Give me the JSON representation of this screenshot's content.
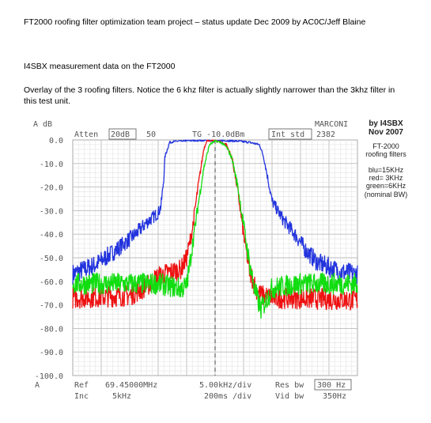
{
  "document": {
    "heading": "FT2000 roofing filter optimization team project – status update Dec 2009 by AC0C/Jeff Blaine",
    "subheading": "I4SBX measurement data on the FT2000",
    "paragraph_line1": "Overlay of the 3 roofing filters.  Notice the 6 khz filter is actually slightly narrower than the 3khz filter in",
    "paragraph_line2": "this test unit."
  },
  "chart_data": {
    "type": "line",
    "ylabel": "A dB",
    "ylim": [
      -100,
      0
    ],
    "y_ticks": [
      "0.0",
      "-10.0",
      "-20.0",
      "-30.0",
      "-40.0",
      "-50.0",
      "-60.0",
      "-70.0",
      "-80.0",
      "-90.0",
      "-100.0"
    ],
    "xlim": [
      -25,
      25
    ],
    "bottom_left_label": "A",
    "top_annotations": {
      "atten_label": "Atten",
      "atten_value": "20dB",
      "atten_extra": "50",
      "tg_label": "TG -10.0dBm",
      "int_std_label": "Int std",
      "int_std_value": "2382",
      "brand": "MARCONI"
    },
    "bottom_annotations": {
      "ref_label": "Ref",
      "ref_value": "69.45000MHz",
      "inc_label": "Inc",
      "inc_value": "5kHz",
      "div_freq": "5.00kHz/div",
      "div_time": "200ms /div",
      "res_bw_label": "Res bw",
      "res_bw_value": "300 Hz",
      "vid_bw_label": "Vid bw",
      "vid_bw_value": "350Hz"
    },
    "side_notes": {
      "author": "by I4SBX",
      "date": "Nov 2007",
      "model": "FT-2000",
      "subject": "roofing filters",
      "legend_blue": "blu=15KHz",
      "legend_red": "red= 3KHz",
      "legend_green": "green=6KHz",
      "nominal": "(nominal BW)"
    },
    "series": [
      {
        "color": "#2233dd",
        "x": [
          -25,
          -21,
          -17,
          -14,
          -12,
          -10,
          -9.5,
          -9,
          -8.8,
          -8,
          -6,
          -4,
          -2,
          0,
          2,
          4,
          6,
          7.8,
          8.5,
          9,
          10,
          12,
          14,
          16,
          18,
          20,
          22,
          25
        ],
        "y": [
          -57,
          -53,
          -46,
          -40,
          -35,
          -31,
          -28,
          -16,
          -7,
          -1,
          -0.3,
          -0.2,
          -0.2,
          -0.2,
          -0.3,
          -0.5,
          -1,
          -2,
          -7,
          -13,
          -26,
          -34,
          -40,
          -47,
          -52,
          -54,
          -56,
          -57
        ]
      },
      {
        "color": "#ee1111",
        "x": [
          -25,
          -15,
          -12,
          -10,
          -8,
          -6,
          -5,
          -4,
          -3,
          -2,
          -1.5,
          -1,
          0,
          1,
          2,
          3,
          4,
          5,
          6,
          7,
          8,
          10,
          13,
          25
        ],
        "y": [
          -67,
          -66,
          -62,
          -58,
          -56,
          -55,
          -50,
          -38,
          -20,
          -4,
          -0.5,
          0,
          0,
          -1,
          -2,
          -8,
          -22,
          -40,
          -55,
          -62,
          -66,
          -67,
          -67,
          -68
        ]
      },
      {
        "color": "#11dd11",
        "x": [
          -25,
          -15,
          -10,
          -8,
          -6,
          -5,
          -4,
          -3,
          -2,
          -1,
          0,
          1,
          2,
          3,
          4,
          5,
          6,
          7,
          8,
          9,
          10,
          12,
          15,
          25
        ],
        "y": [
          -61,
          -61,
          -61,
          -62,
          -63,
          -62,
          -45,
          -28,
          -12,
          -2,
          -0.5,
          -1,
          -3,
          -8,
          -20,
          -36,
          -52,
          -64,
          -72,
          -68,
          -63,
          -62,
          -61,
          -61
        ]
      }
    ]
  }
}
